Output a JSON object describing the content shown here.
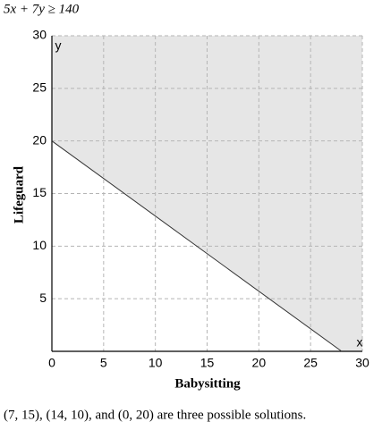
{
  "chart_data": {
    "type": "line",
    "title": "5x + 7y ≥ 140",
    "x_label": "Babysitting",
    "y_label": "Lifeguard",
    "x_axis_letter": "x",
    "y_axis_letter": "y",
    "caption": "(7, 15), (14, 10), and (0, 20) are three possible solutions.",
    "x": [
      0,
      28
    ],
    "series": [
      {
        "color": "#333333",
        "values": [
          20,
          0
        ]
      }
    ],
    "shade": "above",
    "shade_color": "#e6e6e6",
    "xlim": [
      0,
      30
    ],
    "ylim": [
      0,
      30
    ],
    "xticks": [
      0,
      5,
      10,
      15,
      20,
      25,
      30
    ],
    "yticks": [
      5,
      10,
      15,
      20,
      25,
      30
    ],
    "grid": true
  }
}
